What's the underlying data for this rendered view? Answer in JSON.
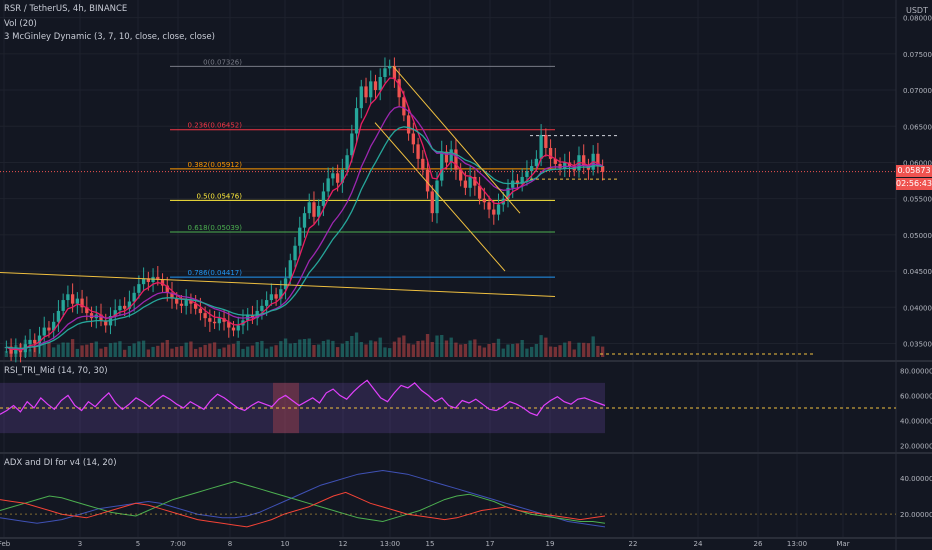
{
  "header": {
    "symbol_line": "RSR / TetherUS, 4h, BINANCE",
    "vol_line": "Vol (20)",
    "ma_line": "3 McGinley Dynamic (3, 7, 10, close, close, close)",
    "rsi_line": "RSI_TRI_Mid (14, 70, 30)",
    "adx_line": "ADX and DI for v4 (14, 20)"
  },
  "price_axis": {
    "currency": "USDT",
    "tick_labels": [
      "0.08000",
      "0.07500",
      "0.07000",
      "0.06500",
      "0.06000",
      "0.05500",
      "0.05000",
      "0.04500",
      "0.04000",
      "0.03500"
    ],
    "ticks": [
      0.08,
      0.075,
      0.07,
      0.065,
      0.06,
      0.055,
      0.05,
      0.045,
      0.04,
      0.035
    ],
    "current_price": "0.05873",
    "countdown": "02:56:43",
    "current_color": "#ef5350"
  },
  "rsi_axis": {
    "tick_labels": [
      "80.00000",
      "60.00000",
      "40.00000",
      "20.00000"
    ],
    "ticks": [
      80,
      60,
      40,
      20
    ]
  },
  "adx_axis": {
    "tick_labels": [
      "40.00000",
      "20.00000"
    ],
    "ticks": [
      40,
      20
    ]
  },
  "time_axis": {
    "labels": [
      "Feb",
      "3",
      "5",
      "7:00",
      "8",
      "10",
      "12",
      "13:00",
      "15",
      "17",
      "19",
      "22",
      "24",
      "26",
      "13:00",
      "Mar"
    ]
  },
  "fib_levels": [
    {
      "label": "0(0.07326)",
      "price": 0.07326,
      "color": "#787b86"
    },
    {
      "label": "0.236(0.06452)",
      "price": 0.06452,
      "color": "#f23645"
    },
    {
      "label": "0.382(0.05912)",
      "price": 0.05912,
      "color": "#ff9800"
    },
    {
      "label": "0.5(0.05476)",
      "price": 0.05476,
      "color": "#ffeb3b"
    },
    {
      "label": "0.618(0.05039)",
      "price": 0.05039,
      "color": "#4caf50"
    },
    {
      "label": "0.786(0.04417)",
      "price": 0.04417,
      "color": "#2196f3"
    }
  ],
  "colors": {
    "up": "#26a69a",
    "down": "#ef5350",
    "mcginley_fast": "#e91e63",
    "mcginley_mid": "#9c27b0",
    "mcginley_slow": "#26a69a",
    "rsi": "#e040fb",
    "adx": "#3f51b5",
    "di_plus": "#4caf50",
    "di_minus": "#f44336",
    "trendline": "#f0c040"
  },
  "chart_data": {
    "type": "candlestick",
    "ylim": [
      0.033,
      0.0805
    ],
    "price_path": [
      0.0345,
      0.0336,
      0.0342,
      0.0338,
      0.0349,
      0.0355,
      0.035,
      0.0361,
      0.0372,
      0.0368,
      0.038,
      0.0395,
      0.041,
      0.0418,
      0.0405,
      0.0412,
      0.04,
      0.0392,
      0.0385,
      0.039,
      0.0382,
      0.0375,
      0.0388,
      0.0396,
      0.0402,
      0.0398,
      0.0408,
      0.042,
      0.0432,
      0.044,
      0.0435,
      0.0442,
      0.0438,
      0.043,
      0.042,
      0.0412,
      0.0405,
      0.0402,
      0.041,
      0.0405,
      0.0398,
      0.0392,
      0.0385,
      0.038,
      0.0378,
      0.0385,
      0.038,
      0.0372,
      0.0368,
      0.0375,
      0.0382,
      0.039,
      0.0385,
      0.0395,
      0.0402,
      0.041,
      0.0418,
      0.0412,
      0.0425,
      0.044,
      0.0465,
      0.0485,
      0.051,
      0.053,
      0.0545,
      0.0525,
      0.054,
      0.056,
      0.0578,
      0.0585,
      0.0572,
      0.059,
      0.061,
      0.064,
      0.0675,
      0.0705,
      0.069,
      0.0712,
      0.07,
      0.0718,
      0.073,
      0.0733,
      0.0715,
      0.069,
      0.0665,
      0.064,
      0.0625,
      0.0605,
      0.059,
      0.056,
      0.053,
      0.0575,
      0.0615,
      0.06,
      0.0618,
      0.059,
      0.0575,
      0.0565,
      0.058,
      0.0568,
      0.055,
      0.0545,
      0.0535,
      0.0528,
      0.0542,
      0.055,
      0.0565,
      0.0575,
      0.057,
      0.058,
      0.0588,
      0.0595,
      0.0605,
      0.0638,
      0.062,
      0.0605,
      0.0598,
      0.0592,
      0.06,
      0.0594,
      0.0589,
      0.061,
      0.0596,
      0.059,
      0.0612,
      0.0595,
      0.0587
    ],
    "rsi_path": [
      45,
      48,
      52,
      47,
      55,
      50,
      58,
      53,
      49,
      56,
      60,
      52,
      48,
      55,
      51,
      57,
      62,
      54,
      49,
      53,
      58,
      55,
      51,
      56,
      60,
      57,
      53,
      50,
      55,
      52,
      49,
      56,
      61,
      58,
      54,
      50,
      48,
      52,
      55,
      53,
      51,
      57,
      60,
      56,
      52,
      55,
      58,
      54,
      62,
      65,
      60,
      57,
      63,
      68,
      72,
      65,
      58,
      55,
      62,
      68,
      66,
      70,
      64,
      60,
      55,
      58,
      52,
      50,
      56,
      54,
      57,
      53,
      49,
      48,
      51,
      55,
      53,
      50,
      46,
      44,
      52,
      56,
      59,
      55,
      53,
      57,
      58,
      56,
      54,
      52
    ],
    "adx_path": [
      18,
      17,
      16,
      15,
      16,
      17,
      19,
      21,
      23,
      24,
      25,
      26,
      27,
      26,
      24,
      22,
      20,
      19,
      18,
      18,
      19,
      21,
      24,
      27,
      30,
      33,
      36,
      38,
      40,
      42,
      43,
      44,
      43,
      42,
      40,
      38,
      36,
      34,
      32,
      30,
      28,
      26,
      24,
      22,
      20,
      18,
      16,
      15,
      14,
      13
    ],
    "di_plus_path": [
      22,
      24,
      26,
      28,
      30,
      29,
      27,
      25,
      23,
      21,
      20,
      19,
      22,
      25,
      28,
      30,
      32,
      34,
      36,
      38,
      36,
      34,
      32,
      30,
      28,
      26,
      24,
      22,
      20,
      18,
      17,
      16,
      18,
      20,
      22,
      25,
      28,
      30,
      31,
      29,
      27,
      24,
      22,
      20,
      19,
      18,
      17,
      16,
      16,
      15
    ],
    "di_minus_path": [
      28,
      27,
      26,
      24,
      22,
      20,
      19,
      18,
      20,
      22,
      24,
      26,
      25,
      23,
      21,
      19,
      17,
      16,
      15,
      14,
      13,
      15,
      17,
      20,
      22,
      24,
      27,
      30,
      32,
      29,
      26,
      24,
      22,
      20,
      19,
      18,
      17,
      18,
      20,
      22,
      23,
      24,
      22,
      21,
      20,
      19,
      18,
      17,
      18,
      19
    ]
  }
}
